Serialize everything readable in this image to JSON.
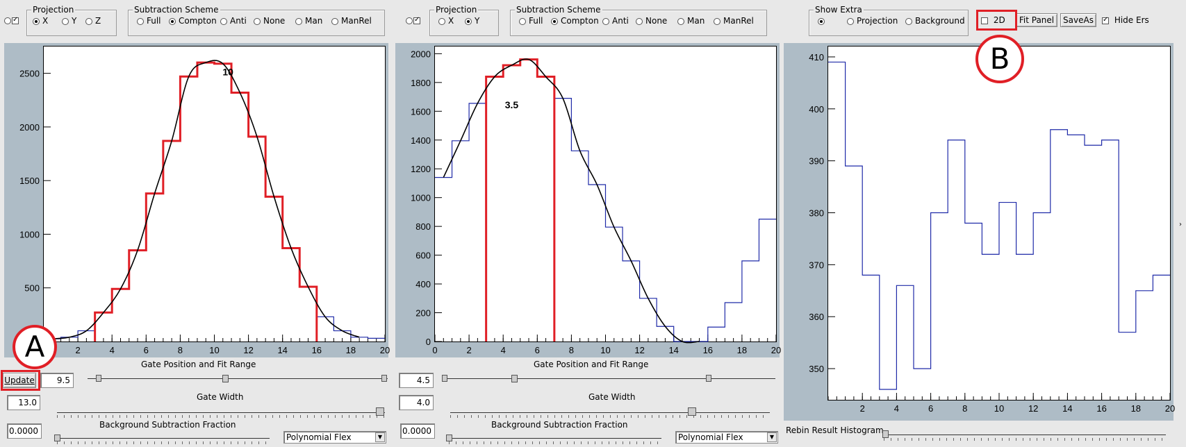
{
  "top": {
    "left": {
      "projection_title": "Projection",
      "projection_options": [
        "X",
        "Y",
        "Z"
      ],
      "projection_selected": "X",
      "subtraction_title": "Subtraction Scheme",
      "subtraction_options": [
        "Full",
        "Compton",
        "Anti",
        "None",
        "Man",
        "ManRel"
      ],
      "subtraction_selected": "Compton"
    },
    "middle": {
      "projection_title": "Projection",
      "projection_options": [
        "X",
        "Y"
      ],
      "projection_selected": "Y",
      "subtraction_title": "Subtraction Scheme",
      "subtraction_options": [
        "Full",
        "Compton",
        "Anti",
        "None",
        "Man",
        "ManRel"
      ],
      "subtraction_selected": "Compton"
    },
    "right": {
      "show_extra_title": "Show Extra",
      "show_extra_options": [
        "",
        "Projection",
        "Background"
      ],
      "show_extra_selected": "",
      "twod_label": "2D",
      "twod_checked": false,
      "fit_panel_label": "Fit Panel",
      "save_as_label": "SaveAs",
      "hide_ers_label": "Hide Ers",
      "hide_ers_checked": true
    }
  },
  "left_panel": {
    "gate_label": "10",
    "y_ticks": [
      "500",
      "1000",
      "1500",
      "2000",
      "2500"
    ],
    "x_ticks": [
      "2",
      "4",
      "6",
      "8",
      "10",
      "12",
      "14",
      "16",
      "18",
      "20"
    ],
    "slider_label": "Gate Position and Fit Range",
    "update_label": "Update",
    "gate_position_value": "9.5",
    "gate_width_label": "Gate Width",
    "gate_width_value": "13.0",
    "bg_fraction_label": "Background Subtraction Fraction",
    "bg_fraction_value": "0.0000",
    "dropdown_value": "Polynomial Flex"
  },
  "middle_panel": {
    "gate_label": "3.5",
    "y_ticks": [
      "0",
      "200",
      "400",
      "600",
      "800",
      "1000",
      "1200",
      "1400",
      "1600",
      "1800",
      "2000"
    ],
    "x_ticks": [
      "0",
      "2",
      "4",
      "6",
      "8",
      "10",
      "12",
      "14",
      "16",
      "18",
      "20"
    ],
    "slider_label": "Gate Position and Fit Range",
    "gate_position_value": "4.5",
    "gate_width_label": "Gate Width",
    "gate_width_value": "4.0",
    "bg_fraction_label": "Background Subtraction Fraction",
    "bg_fraction_value": "0.0000",
    "dropdown_value": "Polynomial Flex"
  },
  "right_panel": {
    "y_ticks": [
      "350",
      "360",
      "370",
      "380",
      "390",
      "400",
      "410"
    ],
    "x_ticks": [
      "2",
      "4",
      "6",
      "8",
      "10",
      "12",
      "14",
      "16",
      "18",
      "20"
    ],
    "rebin_label": "Rebin Result Histogram"
  },
  "annotations": {
    "a": "A",
    "b": "B"
  },
  "colors": {
    "panel_bg": "#aebcc6",
    "gate_red": "#e01f26",
    "hist_blue": "#1f2aa8",
    "fit_black": "#000000"
  },
  "chart_data": [
    {
      "type": "line",
      "title": "",
      "xlabel": "",
      "ylabel": "",
      "xlim": [
        0,
        20
      ],
      "ylim": [
        0,
        2750
      ],
      "series": [
        {
          "x": [
            0,
            1,
            2,
            3,
            4,
            5,
            6,
            7,
            8,
            9,
            10,
            11,
            12,
            13,
            14,
            15,
            16,
            17,
            18,
            19
          ],
          "values": [
            25,
            40,
            100,
            270,
            490,
            850,
            1380,
            1870,
            2470,
            2600,
            2590,
            2320,
            1910,
            1350,
            870,
            510,
            230,
            100,
            40,
            30
          ]
        }
      ],
      "gate": [
        3,
        16
      ]
    },
    {
      "type": "line",
      "title": "",
      "xlabel": "",
      "ylabel": "",
      "xlim": [
        0,
        20
      ],
      "ylim": [
        0,
        2050
      ],
      "series": [
        {
          "x": [
            0,
            1,
            2,
            3,
            4,
            5,
            6,
            7,
            8,
            9,
            10,
            11,
            12,
            13,
            14,
            15,
            16,
            17,
            18,
            19
          ],
          "values": [
            1140,
            1395,
            1655,
            1840,
            1920,
            1960,
            1840,
            1690,
            1325,
            1090,
            795,
            560,
            300,
            105,
            0,
            0,
            100,
            270,
            560,
            850
          ]
        }
      ],
      "gate": [
        3,
        7
      ]
    },
    {
      "type": "line",
      "title": "",
      "xlabel": "",
      "ylabel": "",
      "xlim": [
        0,
        20
      ],
      "ylim": [
        344,
        412
      ],
      "series": [
        {
          "x": [
            0,
            1,
            2,
            3,
            4,
            5,
            6,
            7,
            8,
            9,
            10,
            11,
            12,
            13,
            14,
            15,
            16,
            17,
            18,
            19
          ],
          "values": [
            409,
            389,
            368,
            346,
            366,
            350,
            380,
            394,
            378,
            372,
            382,
            372,
            380,
            396,
            395,
            393,
            394,
            357,
            365,
            368
          ]
        }
      ]
    }
  ]
}
